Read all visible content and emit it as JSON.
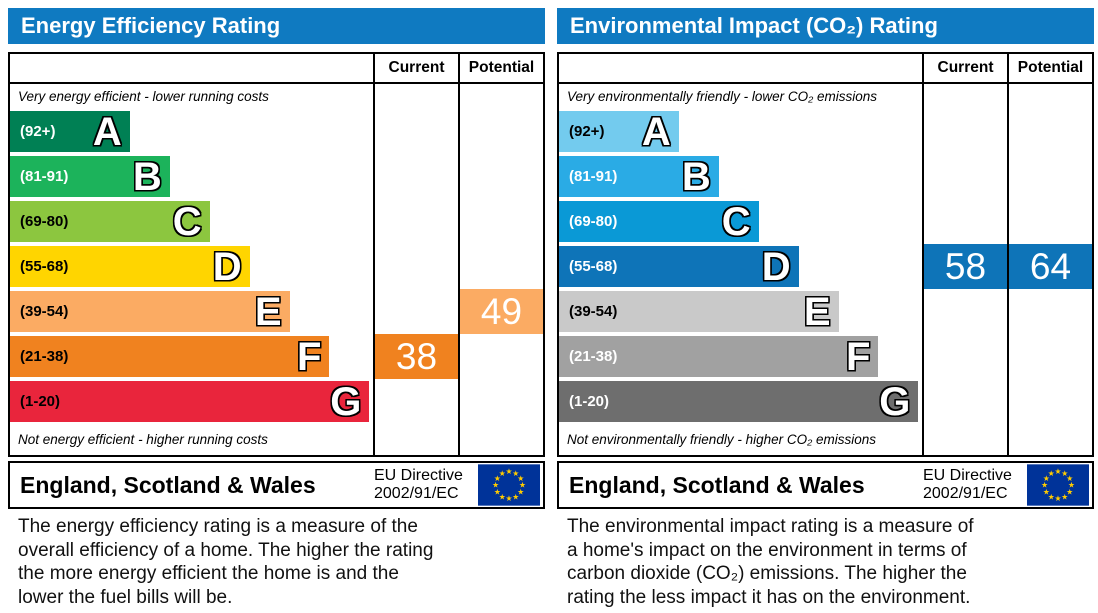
{
  "colors": {
    "title_bar": "#0f7ac1",
    "eu_flag_bg": "#003399",
    "eu_flag_stars": "#ffcc00",
    "table_border": "#000000"
  },
  "panels": [
    {
      "title": "Energy Efficiency Rating",
      "columns": {
        "current": "Current",
        "potential": "Potential"
      },
      "caption_top": "Very energy efficient - lower running costs",
      "caption_bottom": "Not energy efficient - higher running costs",
      "bands": [
        {
          "letter": "A",
          "range": "(92+)",
          "color": "#008054",
          "width_pct": 33,
          "label_color": "#ffffff"
        },
        {
          "letter": "B",
          "range": "(81-91)",
          "color": "#1cb35b",
          "width_pct": 44,
          "label_color": "#ffffff"
        },
        {
          "letter": "C",
          "range": "(69-80)",
          "color": "#8cc63f",
          "width_pct": 55,
          "label_color": "#000000"
        },
        {
          "letter": "D",
          "range": "(55-68)",
          "color": "#ffd500",
          "width_pct": 66,
          "label_color": "#000000"
        },
        {
          "letter": "E",
          "range": "(39-54)",
          "color": "#fbab63",
          "width_pct": 77,
          "label_color": "#000000"
        },
        {
          "letter": "F",
          "range": "(21-38)",
          "color": "#f0821f",
          "width_pct": 88,
          "label_color": "#000000"
        },
        {
          "letter": "G",
          "range": "(1-20)",
          "color": "#e9253c",
          "width_pct": 99,
          "label_color": "#000000"
        }
      ],
      "current": {
        "value": "38",
        "band": "F",
        "color": "#f0821f"
      },
      "potential": {
        "value": "49",
        "band": "E",
        "color": "#fbab63"
      },
      "footer": {
        "region": "England, Scotland & Wales",
        "directive_line1": "EU Directive",
        "directive_line2": "2002/91/EC"
      },
      "description_lines": [
        "The energy efficiency rating is a measure of the",
        "overall efficiency of a home. The higher the rating",
        "the more energy efficient the home is and the",
        "lower the fuel bills will be."
      ]
    },
    {
      "title": "Environmental Impact (CO₂) Rating",
      "columns": {
        "current": "Current",
        "potential": "Potential"
      },
      "caption_top": "Very environmentally friendly - lower CO₂ emissions",
      "caption_bottom": "Not environmentally friendly - higher CO₂ emissions",
      "bands": [
        {
          "letter": "A",
          "range": "(92+)",
          "color": "#73cbee",
          "width_pct": 33,
          "label_color": "#000000"
        },
        {
          "letter": "B",
          "range": "(81-91)",
          "color": "#2aabe5",
          "width_pct": 44,
          "label_color": "#ffffff"
        },
        {
          "letter": "C",
          "range": "(69-80)",
          "color": "#0a99d6",
          "width_pct": 55,
          "label_color": "#ffffff"
        },
        {
          "letter": "D",
          "range": "(55-68)",
          "color": "#0e74b8",
          "width_pct": 66,
          "label_color": "#ffffff"
        },
        {
          "letter": "E",
          "range": "(39-54)",
          "color": "#c9c9c9",
          "width_pct": 77,
          "label_color": "#000000"
        },
        {
          "letter": "F",
          "range": "(21-38)",
          "color": "#a1a1a1",
          "width_pct": 88,
          "label_color": "#ffffff"
        },
        {
          "letter": "G",
          "range": "(1-20)",
          "color": "#6e6e6e",
          "width_pct": 99,
          "label_color": "#ffffff"
        }
      ],
      "current": {
        "value": "58",
        "band": "D",
        "color": "#0e74b8"
      },
      "potential": {
        "value": "64",
        "band": "D",
        "color": "#0e74b8"
      },
      "footer": {
        "region": "England, Scotland & Wales",
        "directive_line1": "EU Directive",
        "directive_line2": "2002/91/EC"
      },
      "description_lines": [
        "The environmental impact rating is a measure of",
        "a home's impact on the environment in terms of",
        "carbon dioxide (CO₂) emissions. The higher the",
        "rating the less impact it has on the environment."
      ]
    }
  ],
  "chart_data": [
    {
      "type": "bar",
      "title": "Energy Efficiency Rating",
      "categories": [
        "A (92+)",
        "B (81-91)",
        "C (69-80)",
        "D (55-68)",
        "E (39-54)",
        "F (21-38)",
        "G (1-20)"
      ],
      "values": [
        33,
        44,
        55,
        66,
        77,
        88,
        99
      ],
      "series_note": "values are decorative band lengths as % of scale width",
      "current": {
        "value": 38,
        "band": "F"
      },
      "potential": {
        "value": 49,
        "band": "E"
      },
      "top_note": "Very energy efficient - lower running costs",
      "bottom_note": "Not energy efficient - higher running costs",
      "footer": "England, Scotland & Wales — EU Directive 2002/91/EC"
    },
    {
      "type": "bar",
      "title": "Environmental Impact (CO₂) Rating",
      "categories": [
        "A (92+)",
        "B (81-91)",
        "C (69-80)",
        "D (55-68)",
        "E (39-54)",
        "F (21-38)",
        "G (1-20)"
      ],
      "values": [
        33,
        44,
        55,
        66,
        77,
        88,
        99
      ],
      "series_note": "values are decorative band lengths as % of scale width",
      "current": {
        "value": 58,
        "band": "D"
      },
      "potential": {
        "value": 64,
        "band": "D"
      },
      "top_note": "Very environmentally friendly - lower CO₂ emissions",
      "bottom_note": "Not environmentally friendly - higher CO₂ emissions",
      "footer": "England, Scotland & Wales — EU Directive 2002/91/EC"
    }
  ]
}
